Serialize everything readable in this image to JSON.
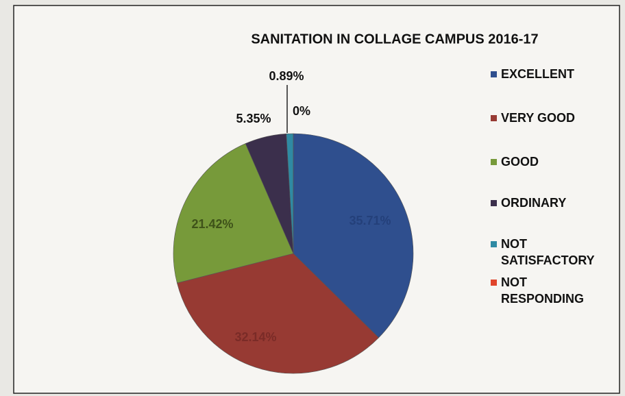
{
  "chart_data": {
    "type": "pie",
    "title": "SANITATION  IN COLLAGE CAMPUS 2016-17",
    "categories": [
      "EXCELLENT",
      "VERY GOOD",
      "GOOD",
      "ORDINARY",
      "NOT SATISFACTORY",
      "NOT RESPONDING"
    ],
    "values": [
      35.71,
      32.14,
      21.42,
      5.35,
      0.89,
      0
    ],
    "value_labels": [
      "35.71%",
      "32.14%",
      "21.42%",
      "5.35%",
      "0.89%",
      "0%"
    ],
    "colors": [
      "#2f4f8e",
      "#973a33",
      "#779a3a",
      "#3b2f4c",
      "#2f8aa3",
      "#e0452c"
    ],
    "legend": "right"
  }
}
